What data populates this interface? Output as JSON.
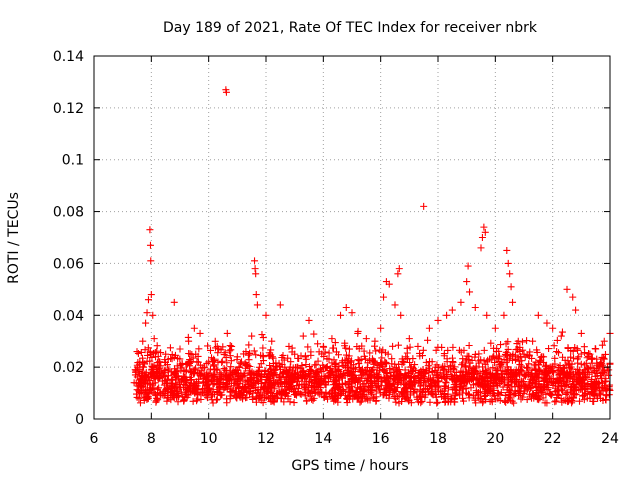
{
  "chart_data": {
    "type": "scatter",
    "title": "Day 189 of 2021, Rate Of TEC Index for receiver nbrk",
    "xlabel": "GPS time / hours",
    "ylabel": "ROTI / TECUs",
    "xlim": [
      6,
      24
    ],
    "ylim": [
      0,
      0.14
    ],
    "xticks": [
      6,
      8,
      10,
      12,
      14,
      16,
      18,
      20,
      22,
      24
    ],
    "xtick_labels": [
      "6",
      "8",
      "10",
      "12",
      "14",
      "16",
      "18",
      "20",
      "22",
      "24"
    ],
    "yticks": [
      0,
      0.02,
      0.04,
      0.06,
      0.08,
      0.1,
      0.12,
      0.14
    ],
    "ytick_labels": [
      "0",
      "0.02",
      "0.04",
      "0.06",
      "0.08",
      "0.1",
      "0.12",
      "0.14"
    ],
    "grid": true,
    "marker": "+",
    "color": "#ff0000",
    "series": [
      {
        "name": "ROTI",
        "points": [
          [
            7.4,
            0.014
          ],
          [
            7.5,
            0.026
          ],
          [
            7.6,
            0.022
          ],
          [
            7.7,
            0.03
          ],
          [
            7.8,
            0.037
          ],
          [
            7.85,
            0.041
          ],
          [
            7.9,
            0.046
          ],
          [
            7.95,
            0.073
          ],
          [
            7.97,
            0.067
          ],
          [
            7.98,
            0.061
          ],
          [
            8.0,
            0.048
          ],
          [
            8.05,
            0.04
          ],
          [
            8.1,
            0.031
          ],
          [
            8.3,
            0.022
          ],
          [
            8.5,
            0.025
          ],
          [
            8.8,
            0.045
          ],
          [
            9.0,
            0.027
          ],
          [
            9.3,
            0.03
          ],
          [
            9.5,
            0.035
          ],
          [
            9.7,
            0.033
          ],
          [
            10.0,
            0.022
          ],
          [
            10.3,
            0.028
          ],
          [
            10.6,
            0.127
          ],
          [
            10.62,
            0.126
          ],
          [
            10.65,
            0.033
          ],
          [
            10.8,
            0.028
          ],
          [
            11.0,
            0.024
          ],
          [
            11.3,
            0.026
          ],
          [
            11.5,
            0.032
          ],
          [
            11.6,
            0.061
          ],
          [
            11.62,
            0.058
          ],
          [
            11.64,
            0.056
          ],
          [
            11.66,
            0.048
          ],
          [
            11.7,
            0.044
          ],
          [
            12.0,
            0.04
          ],
          [
            12.2,
            0.03
          ],
          [
            12.5,
            0.044
          ],
          [
            12.8,
            0.028
          ],
          [
            13.0,
            0.025
          ],
          [
            13.3,
            0.032
          ],
          [
            13.5,
            0.038
          ],
          [
            13.8,
            0.029
          ],
          [
            14.0,
            0.028
          ],
          [
            14.3,
            0.031
          ],
          [
            14.6,
            0.04
          ],
          [
            14.8,
            0.043
          ],
          [
            15.0,
            0.041
          ],
          [
            15.2,
            0.033
          ],
          [
            15.5,
            0.031
          ],
          [
            15.8,
            0.03
          ],
          [
            16.0,
            0.035
          ],
          [
            16.1,
            0.047
          ],
          [
            16.2,
            0.053
          ],
          [
            16.3,
            0.052
          ],
          [
            16.5,
            0.044
          ],
          [
            16.6,
            0.056
          ],
          [
            16.65,
            0.058
          ],
          [
            16.7,
            0.04
          ],
          [
            17.0,
            0.031
          ],
          [
            17.3,
            0.028
          ],
          [
            17.5,
            0.082
          ],
          [
            17.7,
            0.035
          ],
          [
            18.0,
            0.038
          ],
          [
            18.3,
            0.04
          ],
          [
            18.5,
            0.042
          ],
          [
            18.8,
            0.045
          ],
          [
            19.0,
            0.053
          ],
          [
            19.05,
            0.059
          ],
          [
            19.1,
            0.049
          ],
          [
            19.3,
            0.043
          ],
          [
            19.5,
            0.066
          ],
          [
            19.55,
            0.07
          ],
          [
            19.6,
            0.074
          ],
          [
            19.65,
            0.072
          ],
          [
            19.7,
            0.04
          ],
          [
            20.0,
            0.035
          ],
          [
            20.3,
            0.04
          ],
          [
            20.4,
            0.065
          ],
          [
            20.45,
            0.06
          ],
          [
            20.5,
            0.056
          ],
          [
            20.55,
            0.051
          ],
          [
            20.6,
            0.045
          ],
          [
            20.8,
            0.03
          ],
          [
            21.0,
            0.025
          ],
          [
            21.3,
            0.03
          ],
          [
            21.5,
            0.04
          ],
          [
            21.8,
            0.037
          ],
          [
            22.0,
            0.035
          ],
          [
            22.3,
            0.032
          ],
          [
            22.5,
            0.05
          ],
          [
            22.7,
            0.047
          ],
          [
            22.8,
            0.042
          ],
          [
            23.0,
            0.033
          ],
          [
            23.3,
            0.025
          ],
          [
            23.5,
            0.027
          ],
          [
            23.8,
            0.03
          ],
          [
            24.0,
            0.033
          ]
        ]
      }
    ]
  }
}
